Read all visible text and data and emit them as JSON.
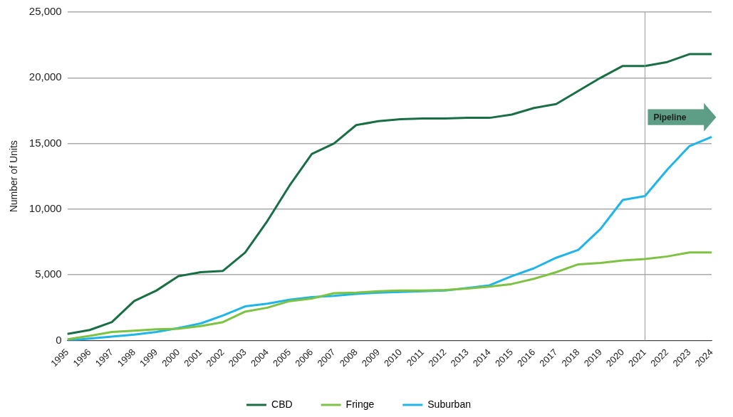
{
  "chart_data": {
    "type": "line",
    "ylabel": "Number of Units",
    "categories": [
      "1995",
      "1996",
      "1997",
      "1998",
      "1999",
      "2000",
      "2001",
      "2002",
      "2003",
      "2004",
      "2005",
      "2006",
      "2007",
      "2008",
      "2009",
      "2010",
      "2011",
      "2012",
      "2013",
      "2014",
      "2015",
      "2016",
      "2017",
      "2018",
      "2019",
      "2020",
      "2021",
      "2022",
      "2023",
      "2024"
    ],
    "series": [
      {
        "name": "CBD",
        "color": "#1a6e45",
        "values": [
          500,
          800,
          1400,
          3000,
          3800,
          4900,
          5200,
          5300,
          6700,
          9100,
          11800,
          14200,
          15000,
          16400,
          16700,
          16850,
          16900,
          16900,
          16950,
          16950,
          17200,
          17700,
          18000,
          19000,
          20000,
          20900,
          20900,
          21200,
          21800,
          21800
        ]
      },
      {
        "name": "Fringe",
        "color": "#7dc242",
        "values": [
          100,
          350,
          650,
          750,
          850,
          900,
          1100,
          1400,
          2200,
          2500,
          3000,
          3200,
          3600,
          3650,
          3750,
          3800,
          3800,
          3850,
          3950,
          4100,
          4300,
          4700,
          5200,
          5800,
          5900,
          6100,
          6200,
          6400,
          6700,
          6700
        ]
      },
      {
        "name": "Suburban",
        "color": "#1fb5e8",
        "values": [
          0,
          150,
          300,
          450,
          650,
          950,
          1300,
          1900,
          2600,
          2800,
          3100,
          3300,
          3400,
          3550,
          3650,
          3700,
          3750,
          3800,
          4000,
          4200,
          4900,
          5500,
          6300,
          6900,
          8500,
          10700,
          11000,
          13000,
          14800,
          15500
        ]
      }
    ],
    "ylim": [
      0,
      25000
    ],
    "yticks": [
      0,
      {
        "value": 5000,
        "label": "5,000"
      },
      {
        "value": 10000,
        "label": "10,000"
      },
      {
        "value": 15000,
        "label": "15,000"
      },
      {
        "value": 20000,
        "label": "20,000"
      },
      {
        "value": 25000,
        "label": "25,000"
      }
    ],
    "grid": "y",
    "legend": "bottom",
    "marker": "none",
    "line_style": "solid",
    "ref_lines": [
      {
        "axis": "x",
        "value": "2021",
        "color": "#999999"
      }
    ],
    "annotations": [
      {
        "text": "Pipeline",
        "x": "2021",
        "y": 17000
      }
    ]
  }
}
